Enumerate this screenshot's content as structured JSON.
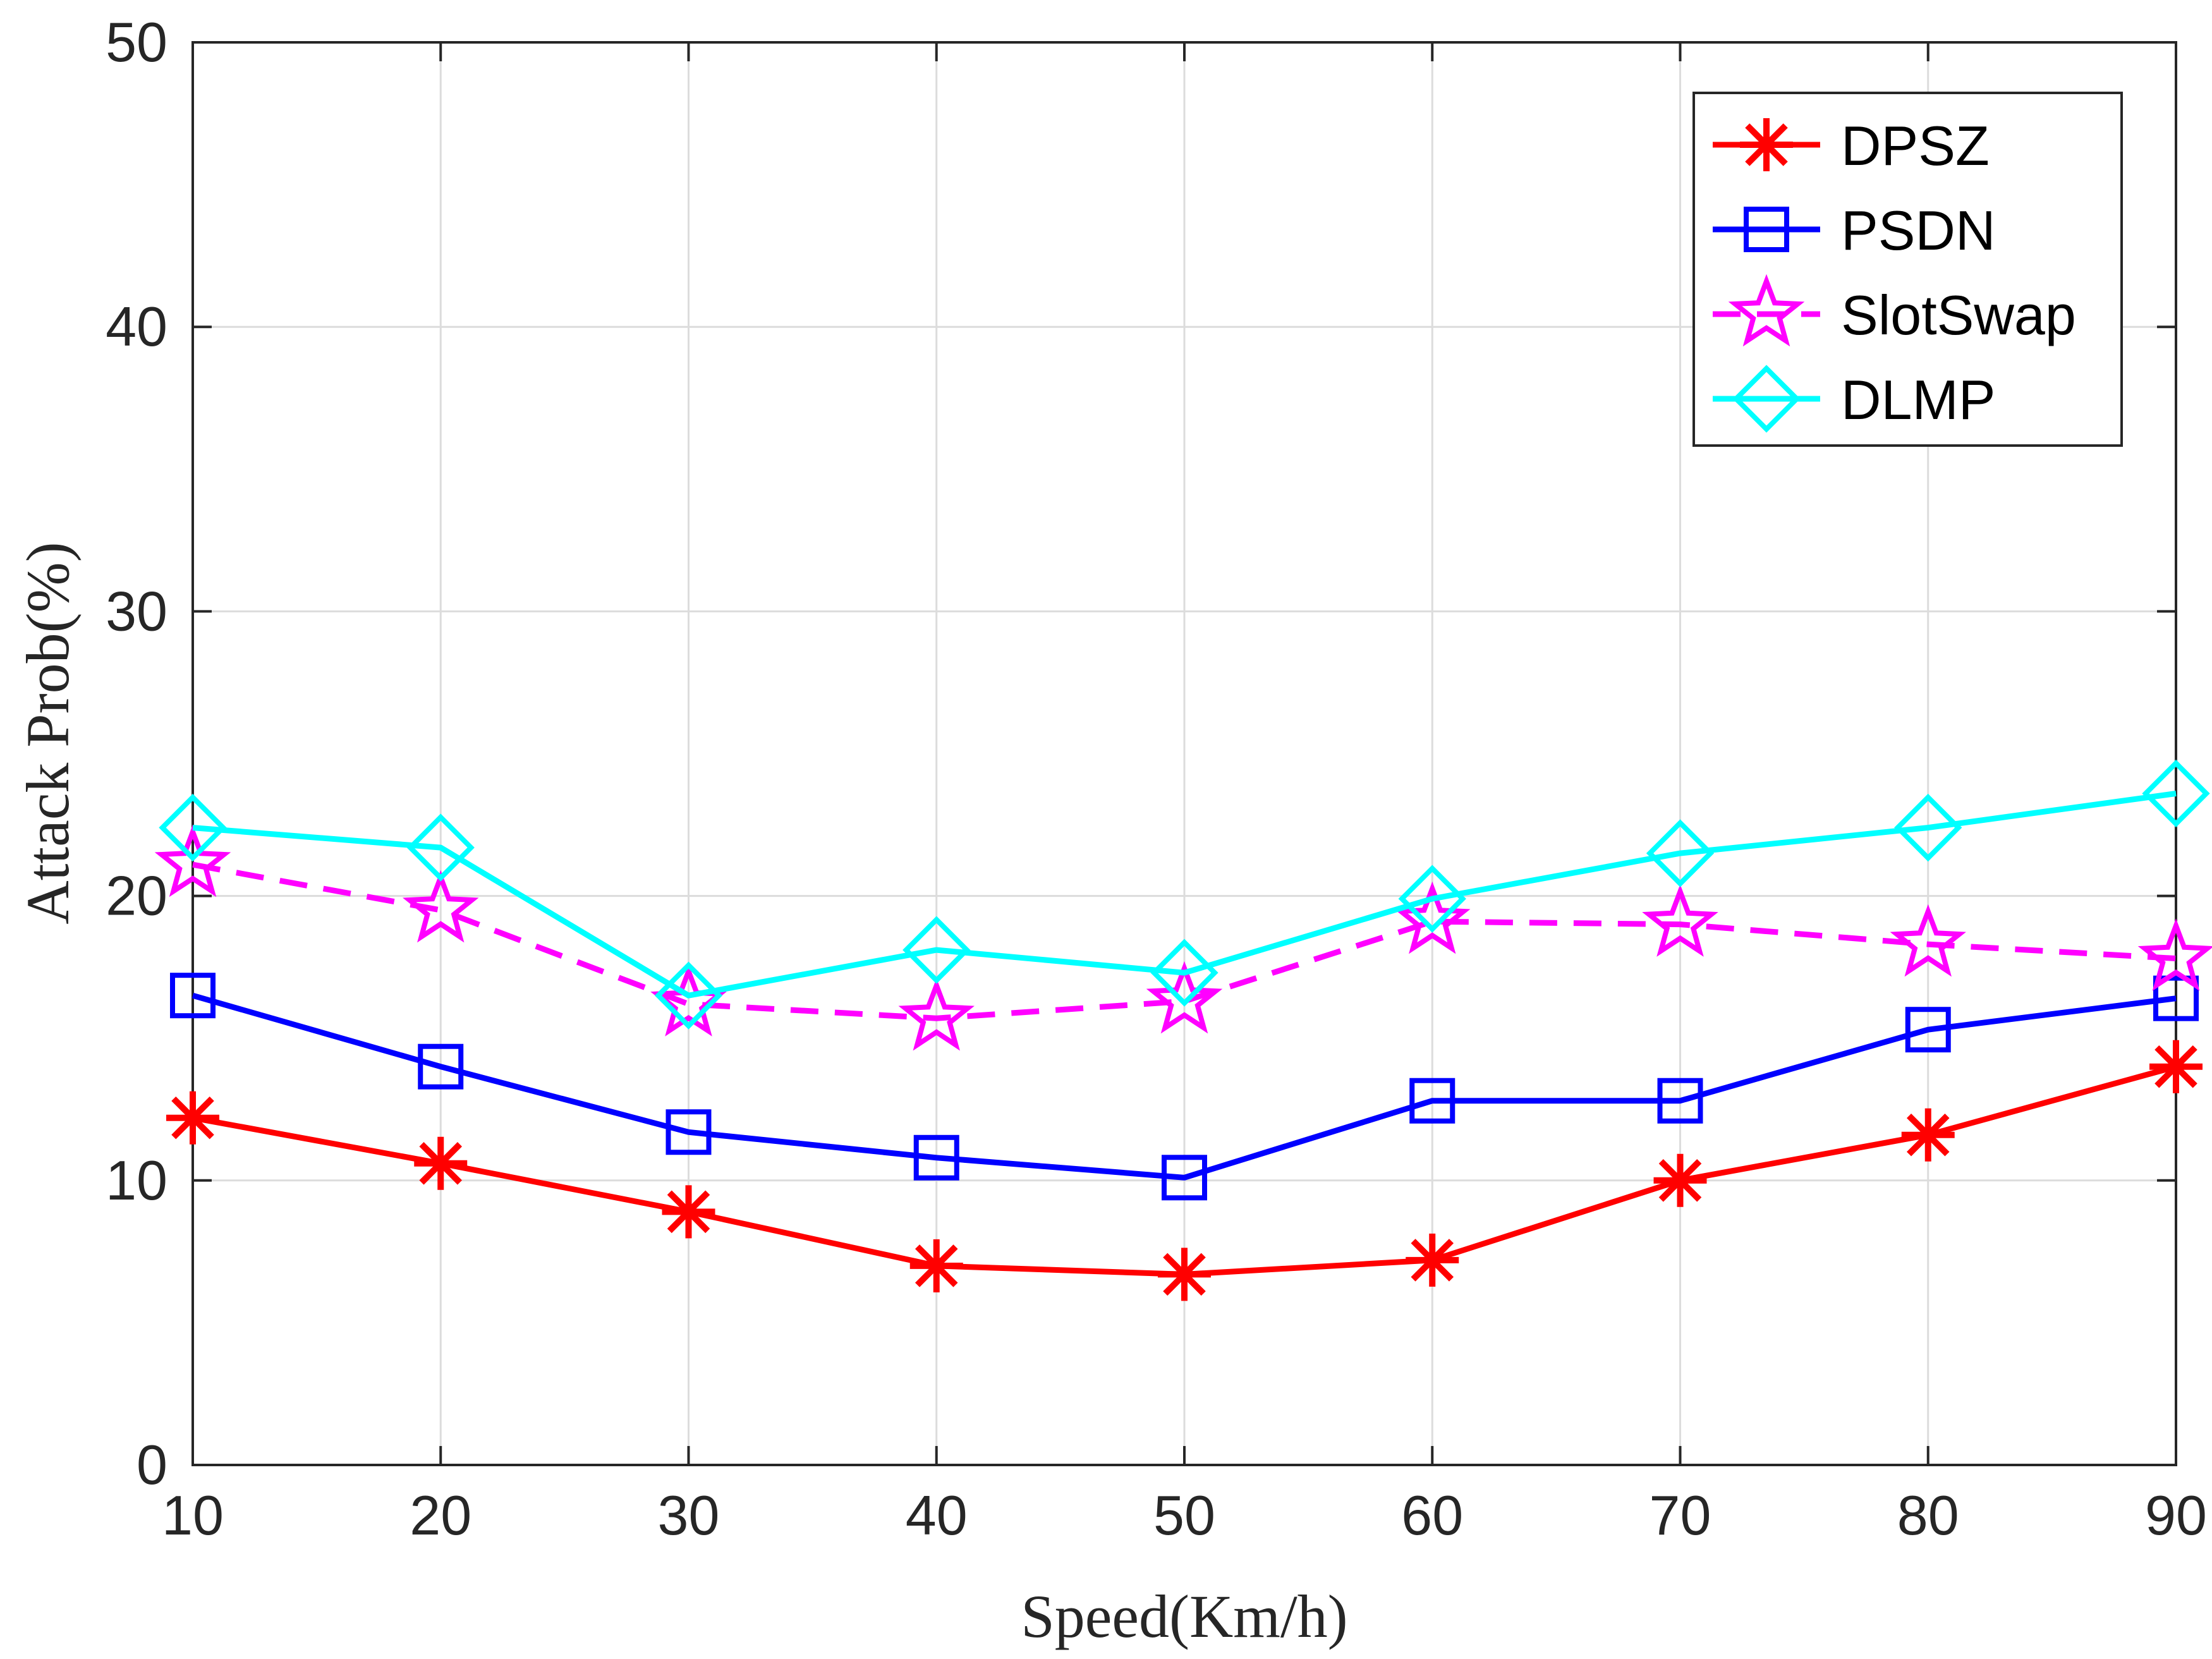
{
  "chart_data": {
    "type": "line",
    "title": "",
    "xlabel": "Speed(Km/h)",
    "ylabel": "Attack Prob(%)",
    "x": [
      10,
      20,
      30,
      40,
      50,
      60,
      70,
      80,
      90
    ],
    "xlim": [
      10,
      90
    ],
    "ylim": [
      0,
      50
    ],
    "xticks": [
      "10",
      "20",
      "30",
      "40",
      "50",
      "60",
      "70",
      "80",
      "90"
    ],
    "yticks": [
      "0",
      "10",
      "20",
      "30",
      "40",
      "50"
    ],
    "grid": true,
    "legend_position": "top-right",
    "series": [
      {
        "name": "DPSZ",
        "values": [
          12.2,
          10.6,
          8.9,
          7.0,
          6.7,
          7.2,
          10.0,
          11.6,
          14.0
        ],
        "color": "#ff0000",
        "marker": "asterisk",
        "dashed": false
      },
      {
        "name": "PSDN",
        "values": [
          16.5,
          14.0,
          11.7,
          10.8,
          10.1,
          12.8,
          12.8,
          15.3,
          16.4
        ],
        "color": "#0000ff",
        "marker": "square",
        "dashed": false
      },
      {
        "name": "SlotSwap",
        "values": [
          21.1,
          19.5,
          16.2,
          15.7,
          16.3,
          19.1,
          19.0,
          18.3,
          17.8
        ],
        "color": "#ff00ff",
        "marker": "pentagram",
        "dashed": true
      },
      {
        "name": "DLMP",
        "values": [
          22.4,
          21.7,
          16.5,
          18.1,
          17.3,
          19.9,
          21.5,
          22.4,
          23.6
        ],
        "color": "#00ffff",
        "marker": "diamond",
        "dashed": false
      }
    ]
  }
}
